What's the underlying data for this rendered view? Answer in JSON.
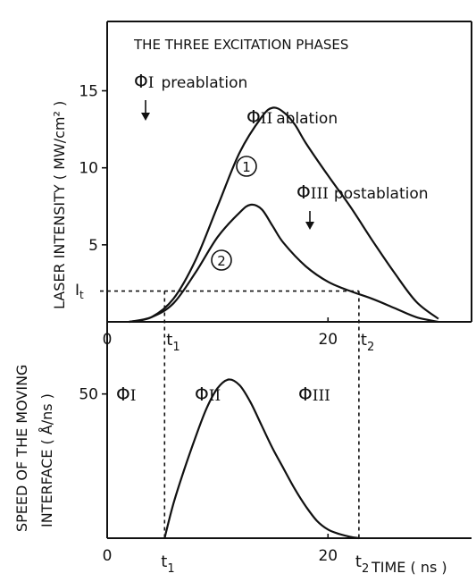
{
  "chart_data": [
    {
      "type": "line",
      "title": "THE THREE EXCITATION PHASES",
      "xlabel": "",
      "ylabel": "LASER INTENSITY ( MW/cm² )",
      "xlim": [
        0,
        33
      ],
      "ylim": [
        0,
        19.5
      ],
      "x_tick_labels": [
        "0",
        "20"
      ],
      "x_ticks": [
        0,
        20
      ],
      "y_tick_labels": [
        "5",
        "10",
        "15"
      ],
      "y_ticks": [
        5,
        10,
        15
      ],
      "series": [
        {
          "name": "1",
          "x": [
            2,
            4,
            6,
            8,
            10,
            12,
            14,
            15,
            16,
            17,
            18,
            20,
            22,
            24,
            26,
            28,
            30
          ],
          "y": [
            0,
            0.3,
            1.5,
            4,
            7.5,
            11,
            13.3,
            13.9,
            13.6,
            12.8,
            11.6,
            9.5,
            7.5,
            5.3,
            3.2,
            1.3,
            0.2
          ]
        },
        {
          "name": "2",
          "x": [
            2,
            4,
            6,
            8,
            10,
            12,
            13,
            14,
            15,
            16,
            18,
            20,
            22,
            24,
            26,
            28,
            30
          ],
          "y": [
            0,
            0.3,
            1.2,
            3.2,
            5.5,
            7.1,
            7.6,
            7.3,
            6.2,
            5.1,
            3.6,
            2.6,
            2,
            1.5,
            0.9,
            0.3,
            0
          ]
        }
      ],
      "threshold": {
        "label": "I",
        "subscript": "t",
        "value": 2
      },
      "annotations": [
        {
          "symbol": "Φ",
          "numeral": "I",
          "text": "preablation"
        },
        {
          "symbol": "Φ",
          "numeral": "II",
          "text": "ablation"
        },
        {
          "symbol": "Φ",
          "numeral": "III",
          "text": "postablation"
        }
      ],
      "markers": [
        {
          "label": "t",
          "subscript": "1",
          "x": 5.2
        },
        {
          "label": "t",
          "subscript": "2",
          "x": 22.8
        }
      ]
    },
    {
      "type": "line",
      "title": "",
      "xlabel": "TIME ( ns )",
      "ylabel_line1": "SPEED OF THE MOVING",
      "ylabel_line2": "INTERFACE ( Å/ns )",
      "xlim": [
        0,
        33
      ],
      "ylim": [
        0,
        75
      ],
      "x_tick_labels": [
        "0",
        "20"
      ],
      "x_ticks": [
        0,
        20
      ],
      "y_tick_labels": [
        "50"
      ],
      "y_ticks": [
        50
      ],
      "series": [
        {
          "name": "",
          "x": [
            5.2,
            6,
            7,
            8,
            9,
            10,
            11,
            12,
            13,
            14,
            15,
            16,
            17,
            18,
            19,
            20,
            21,
            22,
            22.8
          ],
          "y": [
            0,
            12,
            24,
            35,
            45,
            52,
            55,
            53,
            47,
            39,
            31,
            24,
            17,
            11,
            6,
            3,
            1.5,
            0.5,
            0
          ]
        }
      ],
      "phase_labels": [
        {
          "symbol": "Φ",
          "numeral": "I"
        },
        {
          "symbol": "Φ",
          "numeral": "II"
        },
        {
          "symbol": "Φ",
          "numeral": "III"
        }
      ],
      "markers": [
        {
          "label": "t",
          "subscript": "1",
          "x": 5.2
        },
        {
          "label": "t",
          "subscript": "2",
          "x": 22.8
        }
      ]
    }
  ]
}
